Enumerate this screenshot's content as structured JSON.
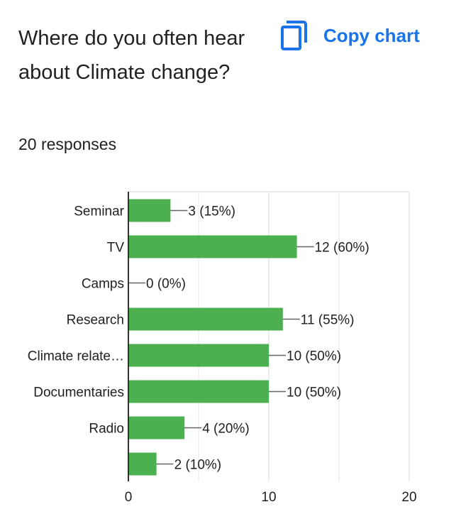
{
  "header": {
    "title": "Where do you often hear about Climate change?",
    "responses": "20 responses",
    "copy_label": "Copy chart",
    "copy_icon": "copy-icon",
    "accent_color": "#1a73e8"
  },
  "chart_data": {
    "type": "bar",
    "orientation": "horizontal",
    "categories": [
      "Seminar",
      "TV",
      "Camps",
      "Research",
      "Climate relate…",
      "Documentaries",
      "Radio",
      ""
    ],
    "values": [
      3,
      12,
      0,
      11,
      10,
      10,
      4,
      2
    ],
    "data_labels": [
      "3 (15%)",
      "12 (60%)",
      "0 (0%)",
      "11 (55%)",
      "10 (50%)",
      "10 (50%)",
      "4 (20%)",
      "2 (10%)"
    ],
    "xlim": [
      0,
      20
    ],
    "x_ticks": [
      "0",
      "10",
      "20"
    ],
    "grid": true,
    "bar_color": "#4caf50"
  }
}
